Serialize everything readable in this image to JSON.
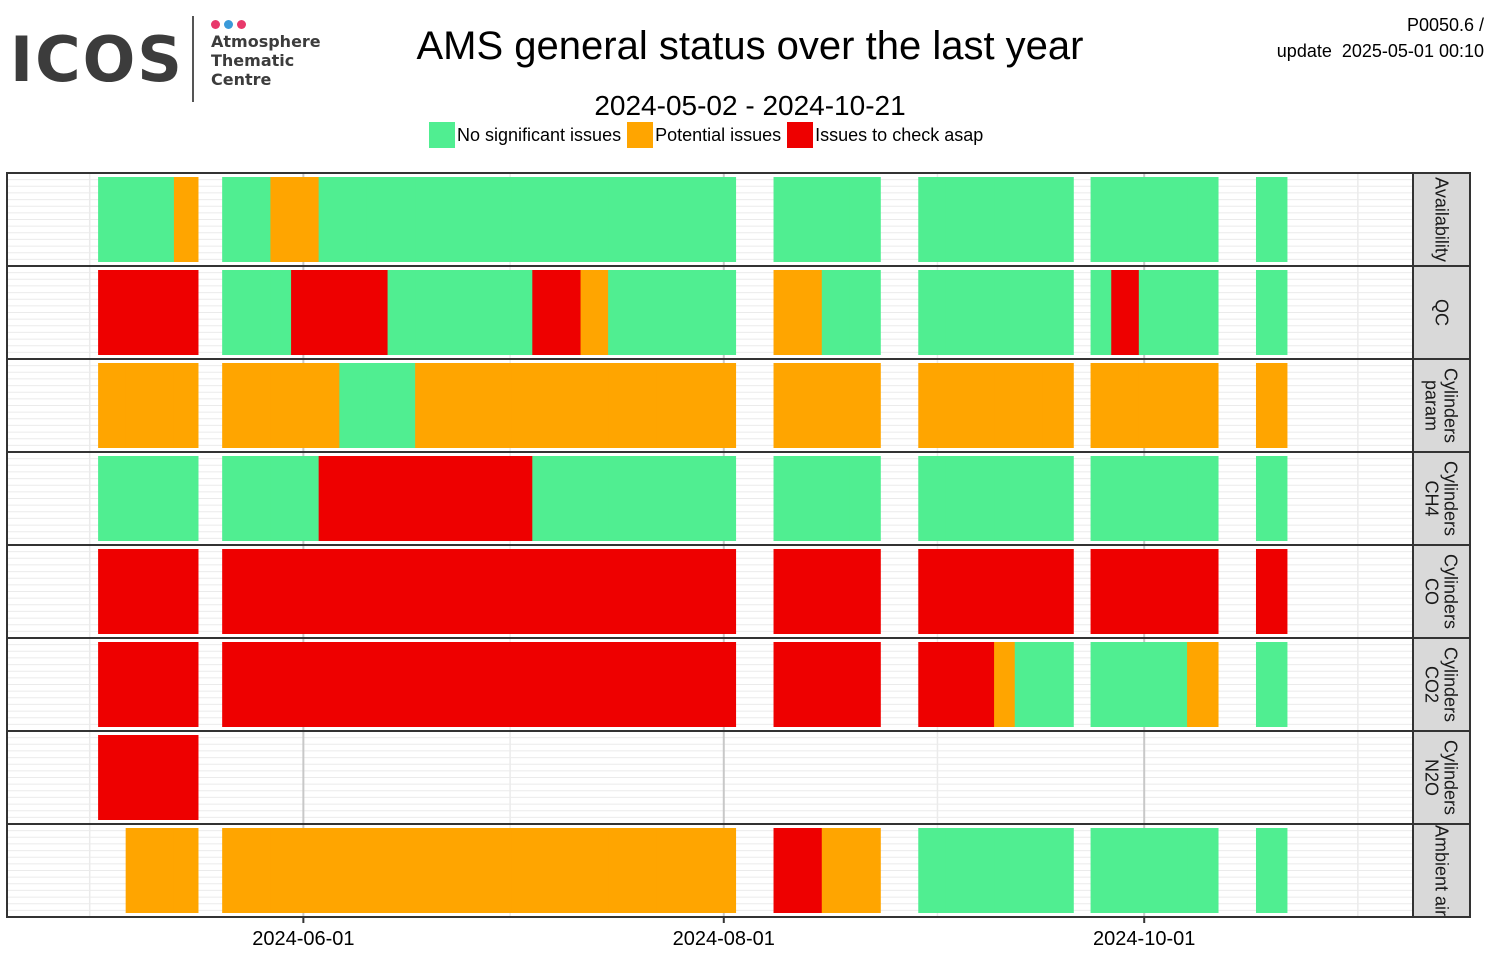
{
  "logo": {
    "word": "ICOS",
    "line1": "Atmosphere",
    "line2": "Thematic",
    "line3": "Centre",
    "dot_colors": [
      "#e8396b",
      "#3a9ad9",
      "#e8396b"
    ]
  },
  "header": {
    "title": "AMS general status over the last year",
    "subtitle": "2024-05-02 - 2024-10-21",
    "code": "P0050.6 /",
    "update_label": "update",
    "update_time": "2025-05-01 00:10"
  },
  "chart_data": {
    "type": "heatmap",
    "legend_placement": "top",
    "statuses": [
      {
        "key": "G",
        "label": "No significant issues",
        "color": "#50EE91"
      },
      {
        "key": "O",
        "label": "Potential issues",
        "color": "#FFA500"
      },
      {
        "key": "R",
        "label": "Issues to check asap",
        "color": "#EE0000"
      }
    ],
    "x_ticks": [
      "2024-06-01",
      "2024-08-01",
      "2024-10-01"
    ],
    "x_range": [
      "2024-04-19",
      "2024-11-09"
    ],
    "panels": [
      {
        "name": "Availability",
        "line1": "Availability",
        "line2": "",
        "segments": [
          [
            "2024-05-02",
            "2024-05-06",
            "G"
          ],
          [
            "2024-05-06",
            "2024-05-13",
            "G"
          ],
          [
            "2024-05-13",
            "2024-05-16",
            "O"
          ],
          [
            "2024-05-20",
            "2024-05-27",
            "G"
          ],
          [
            "2024-05-27",
            "2024-06-03",
            "O"
          ],
          [
            "2024-06-03",
            "2024-06-10",
            "G"
          ],
          [
            "2024-06-10",
            "2024-06-17",
            "G"
          ],
          [
            "2024-06-17",
            "2024-06-24",
            "G"
          ],
          [
            "2024-06-24",
            "2024-07-01",
            "G"
          ],
          [
            "2024-07-01",
            "2024-07-08",
            "G"
          ],
          [
            "2024-07-08",
            "2024-07-15",
            "G"
          ],
          [
            "2024-07-15",
            "2024-07-22",
            "G"
          ],
          [
            "2024-07-22",
            "2024-07-29",
            "G"
          ],
          [
            "2024-07-29",
            "2024-08-02",
            "G"
          ],
          [
            "2024-08-08",
            "2024-08-12",
            "G"
          ],
          [
            "2024-08-12",
            "2024-08-19",
            "G"
          ],
          [
            "2024-08-19",
            "2024-08-23",
            "G"
          ],
          [
            "2024-08-29",
            "2024-09-02",
            "G"
          ],
          [
            "2024-09-02",
            "2024-09-09",
            "G"
          ],
          [
            "2024-09-09",
            "2024-09-16",
            "G"
          ],
          [
            "2024-09-16",
            "2024-09-20",
            "G"
          ],
          [
            "2024-09-23",
            "2024-09-30",
            "G"
          ],
          [
            "2024-09-30",
            "2024-10-07",
            "G"
          ],
          [
            "2024-10-07",
            "2024-10-11",
            "G"
          ],
          [
            "2024-10-17",
            "2024-10-21",
            "G"
          ]
        ]
      },
      {
        "name": "QC",
        "line1": "QC",
        "line2": "",
        "segments": [
          [
            "2024-05-02",
            "2024-05-06",
            "R"
          ],
          [
            "2024-05-06",
            "2024-05-13",
            "R"
          ],
          [
            "2024-05-13",
            "2024-05-16",
            "R"
          ],
          [
            "2024-05-20",
            "2024-05-27",
            "G"
          ],
          [
            "2024-05-27",
            "2024-05-30",
            "G"
          ],
          [
            "2024-05-30",
            "2024-06-03",
            "R"
          ],
          [
            "2024-06-03",
            "2024-06-10",
            "R"
          ],
          [
            "2024-06-10",
            "2024-06-13",
            "R"
          ],
          [
            "2024-06-13",
            "2024-06-17",
            "G"
          ],
          [
            "2024-06-17",
            "2024-06-24",
            "G"
          ],
          [
            "2024-06-24",
            "2024-07-01",
            "G"
          ],
          [
            "2024-07-01",
            "2024-07-04",
            "G"
          ],
          [
            "2024-07-04",
            "2024-07-08",
            "R"
          ],
          [
            "2024-07-08",
            "2024-07-11",
            "R"
          ],
          [
            "2024-07-11",
            "2024-07-15",
            "O"
          ],
          [
            "2024-07-15",
            "2024-07-22",
            "G"
          ],
          [
            "2024-07-22",
            "2024-07-29",
            "G"
          ],
          [
            "2024-07-29",
            "2024-08-02",
            "G"
          ],
          [
            "2024-08-08",
            "2024-08-12",
            "O"
          ],
          [
            "2024-08-12",
            "2024-08-15",
            "O"
          ],
          [
            "2024-08-15",
            "2024-08-19",
            "G"
          ],
          [
            "2024-08-19",
            "2024-08-23",
            "G"
          ],
          [
            "2024-08-29",
            "2024-09-02",
            "G"
          ],
          [
            "2024-09-02",
            "2024-09-09",
            "G"
          ],
          [
            "2024-09-09",
            "2024-09-16",
            "G"
          ],
          [
            "2024-09-16",
            "2024-09-20",
            "G"
          ],
          [
            "2024-09-23",
            "2024-09-26",
            "G"
          ],
          [
            "2024-09-26",
            "2024-09-30",
            "R"
          ],
          [
            "2024-09-30",
            "2024-10-07",
            "G"
          ],
          [
            "2024-10-07",
            "2024-10-11",
            "G"
          ],
          [
            "2024-10-17",
            "2024-10-21",
            "G"
          ]
        ]
      },
      {
        "name": "Cylinders param",
        "line1": "Cylinders",
        "line2": "param",
        "segments": [
          [
            "2024-05-02",
            "2024-05-06",
            "O"
          ],
          [
            "2024-05-06",
            "2024-05-13",
            "O"
          ],
          [
            "2024-05-13",
            "2024-05-16",
            "O"
          ],
          [
            "2024-05-20",
            "2024-05-27",
            "O"
          ],
          [
            "2024-05-27",
            "2024-06-03",
            "O"
          ],
          [
            "2024-06-03",
            "2024-06-06",
            "O"
          ],
          [
            "2024-06-06",
            "2024-06-10",
            "G"
          ],
          [
            "2024-06-10",
            "2024-06-17",
            "G"
          ],
          [
            "2024-06-17",
            "2024-06-24",
            "O"
          ],
          [
            "2024-06-24",
            "2024-07-01",
            "O"
          ],
          [
            "2024-07-01",
            "2024-07-08",
            "O"
          ],
          [
            "2024-07-08",
            "2024-07-15",
            "O"
          ],
          [
            "2024-07-15",
            "2024-07-22",
            "O"
          ],
          [
            "2024-07-22",
            "2024-07-29",
            "O"
          ],
          [
            "2024-07-29",
            "2024-08-02",
            "O"
          ],
          [
            "2024-08-08",
            "2024-08-12",
            "O"
          ],
          [
            "2024-08-12",
            "2024-08-19",
            "O"
          ],
          [
            "2024-08-19",
            "2024-08-23",
            "O"
          ],
          [
            "2024-08-29",
            "2024-09-02",
            "O"
          ],
          [
            "2024-09-02",
            "2024-09-09",
            "O"
          ],
          [
            "2024-09-09",
            "2024-09-16",
            "O"
          ],
          [
            "2024-09-16",
            "2024-09-20",
            "O"
          ],
          [
            "2024-09-23",
            "2024-09-30",
            "O"
          ],
          [
            "2024-09-30",
            "2024-10-07",
            "O"
          ],
          [
            "2024-10-07",
            "2024-10-11",
            "O"
          ],
          [
            "2024-10-17",
            "2024-10-21",
            "O"
          ]
        ]
      },
      {
        "name": "Cylinders CH4",
        "line1": "Cylinders",
        "line2": "CH4",
        "segments": [
          [
            "2024-05-02",
            "2024-05-06",
            "G"
          ],
          [
            "2024-05-06",
            "2024-05-13",
            "G"
          ],
          [
            "2024-05-13",
            "2024-05-16",
            "G"
          ],
          [
            "2024-05-20",
            "2024-05-27",
            "G"
          ],
          [
            "2024-05-27",
            "2024-06-03",
            "G"
          ],
          [
            "2024-06-03",
            "2024-06-10",
            "R"
          ],
          [
            "2024-06-10",
            "2024-06-17",
            "R"
          ],
          [
            "2024-06-17",
            "2024-06-24",
            "R"
          ],
          [
            "2024-06-24",
            "2024-07-01",
            "R"
          ],
          [
            "2024-07-01",
            "2024-07-04",
            "R"
          ],
          [
            "2024-07-04",
            "2024-07-08",
            "G"
          ],
          [
            "2024-07-08",
            "2024-07-15",
            "G"
          ],
          [
            "2024-07-15",
            "2024-07-22",
            "G"
          ],
          [
            "2024-07-22",
            "2024-07-29",
            "G"
          ],
          [
            "2024-07-29",
            "2024-08-02",
            "G"
          ],
          [
            "2024-08-08",
            "2024-08-12",
            "G"
          ],
          [
            "2024-08-12",
            "2024-08-19",
            "G"
          ],
          [
            "2024-08-19",
            "2024-08-23",
            "G"
          ],
          [
            "2024-08-29",
            "2024-09-02",
            "G"
          ],
          [
            "2024-09-02",
            "2024-09-09",
            "G"
          ],
          [
            "2024-09-09",
            "2024-09-16",
            "G"
          ],
          [
            "2024-09-16",
            "2024-09-20",
            "G"
          ],
          [
            "2024-09-23",
            "2024-09-30",
            "G"
          ],
          [
            "2024-09-30",
            "2024-10-07",
            "G"
          ],
          [
            "2024-10-07",
            "2024-10-11",
            "G"
          ],
          [
            "2024-10-17",
            "2024-10-21",
            "G"
          ]
        ]
      },
      {
        "name": "Cylinders CO",
        "line1": "Cylinders",
        "line2": "CO",
        "segments": [
          [
            "2024-05-02",
            "2024-05-06",
            "R"
          ],
          [
            "2024-05-06",
            "2024-05-13",
            "R"
          ],
          [
            "2024-05-13",
            "2024-05-16",
            "R"
          ],
          [
            "2024-05-20",
            "2024-05-27",
            "R"
          ],
          [
            "2024-05-27",
            "2024-06-03",
            "R"
          ],
          [
            "2024-06-03",
            "2024-06-10",
            "R"
          ],
          [
            "2024-06-10",
            "2024-06-17",
            "R"
          ],
          [
            "2024-06-17",
            "2024-06-24",
            "R"
          ],
          [
            "2024-06-24",
            "2024-07-01",
            "R"
          ],
          [
            "2024-07-01",
            "2024-07-08",
            "R"
          ],
          [
            "2024-07-08",
            "2024-07-15",
            "R"
          ],
          [
            "2024-07-15",
            "2024-07-22",
            "R"
          ],
          [
            "2024-07-22",
            "2024-07-29",
            "R"
          ],
          [
            "2024-07-29",
            "2024-08-02",
            "R"
          ],
          [
            "2024-08-08",
            "2024-08-12",
            "R"
          ],
          [
            "2024-08-12",
            "2024-08-19",
            "R"
          ],
          [
            "2024-08-19",
            "2024-08-23",
            "R"
          ],
          [
            "2024-08-29",
            "2024-09-02",
            "R"
          ],
          [
            "2024-09-02",
            "2024-09-09",
            "R"
          ],
          [
            "2024-09-09",
            "2024-09-16",
            "R"
          ],
          [
            "2024-09-16",
            "2024-09-20",
            "R"
          ],
          [
            "2024-09-23",
            "2024-09-30",
            "R"
          ],
          [
            "2024-09-30",
            "2024-10-07",
            "R"
          ],
          [
            "2024-10-07",
            "2024-10-11",
            "R"
          ],
          [
            "2024-10-17",
            "2024-10-21",
            "R"
          ]
        ]
      },
      {
        "name": "Cylinders CO2",
        "line1": "Cylinders",
        "line2": "CO2",
        "segments": [
          [
            "2024-05-02",
            "2024-05-06",
            "R"
          ],
          [
            "2024-05-06",
            "2024-05-13",
            "R"
          ],
          [
            "2024-05-13",
            "2024-05-16",
            "R"
          ],
          [
            "2024-05-20",
            "2024-05-27",
            "R"
          ],
          [
            "2024-05-27",
            "2024-06-03",
            "R"
          ],
          [
            "2024-06-03",
            "2024-06-10",
            "R"
          ],
          [
            "2024-06-10",
            "2024-06-17",
            "R"
          ],
          [
            "2024-06-17",
            "2024-06-24",
            "R"
          ],
          [
            "2024-06-24",
            "2024-07-01",
            "R"
          ],
          [
            "2024-07-01",
            "2024-07-08",
            "R"
          ],
          [
            "2024-07-08",
            "2024-07-15",
            "R"
          ],
          [
            "2024-07-15",
            "2024-07-22",
            "R"
          ],
          [
            "2024-07-22",
            "2024-07-29",
            "R"
          ],
          [
            "2024-07-29",
            "2024-08-02",
            "R"
          ],
          [
            "2024-08-08",
            "2024-08-12",
            "R"
          ],
          [
            "2024-08-12",
            "2024-08-19",
            "R"
          ],
          [
            "2024-08-19",
            "2024-08-23",
            "R"
          ],
          [
            "2024-08-29",
            "2024-09-02",
            "R"
          ],
          [
            "2024-09-02",
            "2024-09-09",
            "R"
          ],
          [
            "2024-09-09",
            "2024-09-12",
            "O"
          ],
          [
            "2024-09-12",
            "2024-09-16",
            "G"
          ],
          [
            "2024-09-16",
            "2024-09-20",
            "G"
          ],
          [
            "2024-09-23",
            "2024-09-30",
            "G"
          ],
          [
            "2024-09-30",
            "2024-10-07",
            "G"
          ],
          [
            "2024-10-07",
            "2024-10-11",
            "O"
          ],
          [
            "2024-10-17",
            "2024-10-21",
            "G"
          ]
        ]
      },
      {
        "name": "Cylinders N2O",
        "line1": "Cylinders",
        "line2": "N2O",
        "segments": [
          [
            "2024-05-02",
            "2024-05-06",
            "R"
          ],
          [
            "2024-05-06",
            "2024-05-13",
            "R"
          ],
          [
            "2024-05-13",
            "2024-05-16",
            "R"
          ]
        ]
      },
      {
        "name": "Ambient air",
        "line1": "Ambient air",
        "line2": "",
        "segments": [
          [
            "2024-05-06",
            "2024-05-13",
            "O"
          ],
          [
            "2024-05-13",
            "2024-05-16",
            "O"
          ],
          [
            "2024-05-20",
            "2024-05-27",
            "O"
          ],
          [
            "2024-05-27",
            "2024-06-03",
            "O"
          ],
          [
            "2024-06-03",
            "2024-06-10",
            "O"
          ],
          [
            "2024-06-10",
            "2024-06-17",
            "O"
          ],
          [
            "2024-06-17",
            "2024-06-24",
            "O"
          ],
          [
            "2024-06-24",
            "2024-07-01",
            "O"
          ],
          [
            "2024-07-01",
            "2024-07-08",
            "O"
          ],
          [
            "2024-07-08",
            "2024-07-15",
            "O"
          ],
          [
            "2024-07-15",
            "2024-07-22",
            "O"
          ],
          [
            "2024-07-22",
            "2024-07-29",
            "O"
          ],
          [
            "2024-07-29",
            "2024-08-02",
            "O"
          ],
          [
            "2024-08-08",
            "2024-08-12",
            "R"
          ],
          [
            "2024-08-12",
            "2024-08-15",
            "R"
          ],
          [
            "2024-08-15",
            "2024-08-19",
            "O"
          ],
          [
            "2024-08-19",
            "2024-08-23",
            "O"
          ],
          [
            "2024-08-29",
            "2024-09-02",
            "G"
          ],
          [
            "2024-09-02",
            "2024-09-09",
            "G"
          ],
          [
            "2024-09-09",
            "2024-09-16",
            "G"
          ],
          [
            "2024-09-16",
            "2024-09-20",
            "G"
          ],
          [
            "2024-09-23",
            "2024-09-30",
            "G"
          ],
          [
            "2024-09-30",
            "2024-10-07",
            "G"
          ],
          [
            "2024-10-07",
            "2024-10-11",
            "G"
          ],
          [
            "2024-10-17",
            "2024-10-21",
            "G"
          ]
        ]
      }
    ]
  }
}
